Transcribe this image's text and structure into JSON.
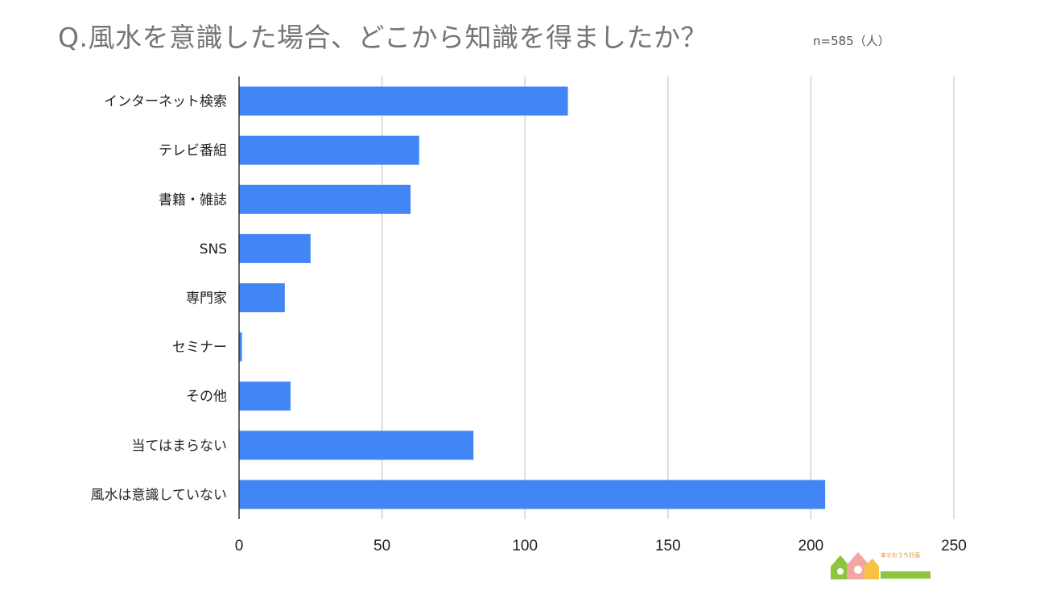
{
  "title": "Q.風水を意識した場合、どこから知識を得ましたか？",
  "note": "n=585（人）",
  "logo": {
    "text": "幸せおうち計画"
  },
  "colors": {
    "bar": "#4285f4",
    "grid": "#cccccc",
    "title": "#757575"
  },
  "chart_data": {
    "type": "bar",
    "orientation": "horizontal",
    "title": "Q.風水を意識した場合、どこから知識を得ましたか？",
    "xlabel": "",
    "ylabel": "",
    "categories": [
      "インターネット検索",
      "テレビ番組",
      "書籍・雑誌",
      "SNS",
      "専門家",
      "セミナー",
      "その他",
      "当てはまらない",
      "風水は意識していない"
    ],
    "values": [
      115,
      63,
      60,
      25,
      16,
      1,
      18,
      82,
      205
    ],
    "xlim": [
      0,
      250
    ],
    "xticks": [
      0,
      50,
      100,
      150,
      200,
      250
    ],
    "grid": true
  }
}
